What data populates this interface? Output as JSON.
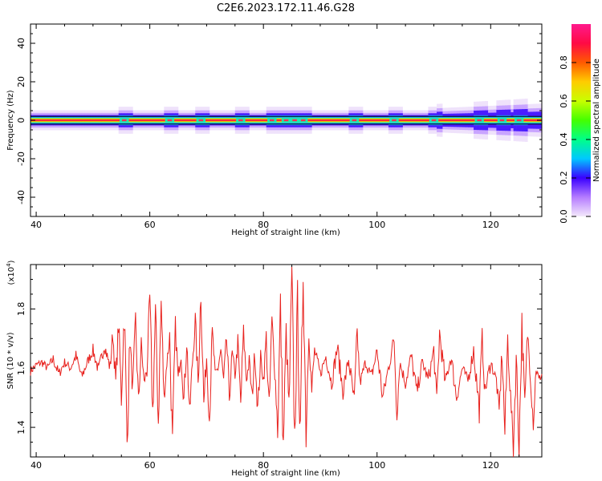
{
  "title": "C2E6.2023.172.11.46.G28",
  "chart_data": [
    {
      "type": "heatmap",
      "name": "spectrogram",
      "xlabel": "Height of straight line (km)",
      "ylabel": "Frequency (Hz)",
      "xlim": [
        39,
        129
      ],
      "ylim": [
        -50,
        50
      ],
      "xticks": [
        40,
        60,
        80,
        100,
        120
      ],
      "yticks": [
        -40,
        -20,
        0,
        20,
        40
      ],
      "ridge_frequency": 0,
      "band_halfwidth_hz": 2,
      "disturbances_km": [
        55.5,
        63.5,
        69,
        76,
        81.5,
        84,
        85.5,
        87,
        96,
        103,
        110,
        118,
        122,
        125
      ],
      "colorbar": {
        "label": "Normalized spectral amplitude",
        "range": [
          0,
          1
        ],
        "ticks": [
          "0.0",
          "0.2",
          "0.4",
          "0.6",
          "0.8"
        ],
        "colors": [
          "#f4e9fb",
          "#b57cff",
          "#3a00ff",
          "#00c8ff",
          "#00ff88",
          "#44ff00",
          "#c8ff00",
          "#ffcc00",
          "#ff5a00",
          "#ff0a44",
          "#ff1a8c"
        ]
      }
    },
    {
      "type": "line",
      "name": "snr",
      "xlabel": "Height of straight line (km)",
      "ylabel": "SNR (10 * v/v)",
      "y_multiplier_label": "(x10",
      "y_multiplier_exp": "4",
      "y_multiplier_close": ")",
      "xlim": [
        39,
        129
      ],
      "ylim": [
        1.3,
        1.95
      ],
      "xticks": [
        40,
        60,
        80,
        100,
        120
      ],
      "yticks": [
        1.4,
        1.6,
        1.8
      ],
      "color": "#e8231f",
      "x": [
        39,
        40,
        41,
        42,
        43,
        44,
        45,
        46,
        47,
        48,
        49,
        50,
        51,
        52,
        53,
        53.5,
        54,
        54.5,
        55,
        55.5,
        56,
        56.5,
        57,
        57.5,
        58,
        58.5,
        59,
        59.5,
        60,
        60.5,
        61,
        61.5,
        62,
        62.5,
        63,
        63.5,
        64,
        64.5,
        65,
        65.5,
        66,
        66.5,
        67,
        67.5,
        68,
        68.5,
        69,
        69.5,
        70,
        70.5,
        71,
        71.5,
        72,
        72.5,
        73,
        73.5,
        74,
        74.5,
        75,
        75.5,
        76,
        76.5,
        77,
        77.5,
        78,
        78.5,
        79,
        79.5,
        80,
        80.5,
        81,
        81.5,
        82,
        82.5,
        83,
        83.5,
        84,
        84.5,
        85,
        85.5,
        86,
        86.5,
        87,
        87.5,
        88,
        88.5,
        89,
        90,
        91,
        92,
        93,
        94,
        95,
        96,
        96.5,
        97,
        98,
        99,
        100,
        101,
        102,
        103,
        103.5,
        104,
        105,
        106,
        107,
        108,
        109,
        110,
        110.5,
        111,
        112,
        113,
        114,
        115,
        116,
        117,
        118,
        118.5,
        119,
        120,
        121,
        121.5,
        122,
        122.5,
        123,
        123.5,
        124,
        124.5,
        125,
        125.5,
        126,
        126.5,
        127,
        127.5,
        128,
        128.5,
        129
      ],
      "values": [
        1.59,
        1.61,
        1.62,
        1.6,
        1.63,
        1.58,
        1.62,
        1.6,
        1.64,
        1.57,
        1.62,
        1.66,
        1.59,
        1.68,
        1.6,
        1.72,
        1.55,
        1.75,
        1.5,
        1.8,
        1.35,
        1.7,
        1.52,
        1.76,
        1.48,
        1.68,
        1.55,
        1.6,
        1.83,
        1.45,
        1.78,
        1.42,
        1.82,
        1.5,
        1.62,
        1.7,
        1.33,
        1.74,
        1.56,
        1.66,
        1.49,
        1.7,
        1.44,
        1.62,
        1.76,
        1.55,
        1.87,
        1.48,
        1.64,
        1.43,
        1.72,
        1.58,
        1.6,
        1.66,
        1.55,
        1.7,
        1.5,
        1.65,
        1.58,
        1.68,
        1.48,
        1.72,
        1.56,
        1.62,
        1.5,
        1.66,
        1.46,
        1.64,
        1.56,
        1.7,
        1.45,
        1.76,
        1.6,
        1.4,
        1.8,
        1.33,
        1.72,
        1.45,
        1.9,
        1.36,
        1.82,
        1.33,
        1.95,
        1.38,
        1.74,
        1.52,
        1.66,
        1.58,
        1.64,
        1.55,
        1.67,
        1.52,
        1.63,
        1.48,
        1.72,
        1.55,
        1.62,
        1.57,
        1.66,
        1.5,
        1.6,
        1.7,
        1.45,
        1.62,
        1.55,
        1.64,
        1.52,
        1.62,
        1.56,
        1.66,
        1.48,
        1.72,
        1.55,
        1.64,
        1.5,
        1.6,
        1.56,
        1.66,
        1.46,
        1.7,
        1.52,
        1.62,
        1.56,
        1.45,
        1.66,
        1.38,
        1.7,
        1.5,
        1.34,
        1.64,
        1.33,
        1.75,
        1.46,
        1.72,
        1.58,
        1.42,
        1.6,
        1.56,
        1.58
      ]
    }
  ]
}
